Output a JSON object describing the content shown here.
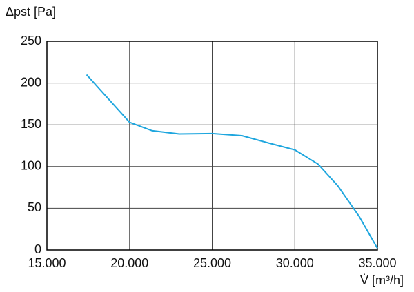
{
  "chart_data": {
    "type": "line",
    "ylabel": "Δpst [Pa]",
    "xlabel": "V̇ [m³/h]",
    "x": [
      17400,
      18400,
      20000,
      21350,
      23000,
      25000,
      26800,
      28450,
      30000,
      31400,
      32600,
      33900,
      35000
    ],
    "series": [
      {
        "color": "#1ea6de",
        "values": [
          210,
          188,
          153,
          143,
          139,
          139.5,
          137,
          128,
          120,
          103,
          77,
          40,
          2
        ]
      }
    ],
    "xlim": [
      15000,
      35000
    ],
    "xticks": [
      {
        "value": 15000,
        "label": "15.000"
      },
      {
        "value": 20000,
        "label": "20.000"
      },
      {
        "value": 25000,
        "label": "25.000"
      },
      {
        "value": 30000,
        "label": "30.000"
      },
      {
        "value": 35000,
        "label": "35.000"
      }
    ],
    "ylim": [
      0,
      250
    ],
    "yticks": [
      0,
      50,
      100,
      150,
      200,
      250
    ],
    "grid": true
  }
}
